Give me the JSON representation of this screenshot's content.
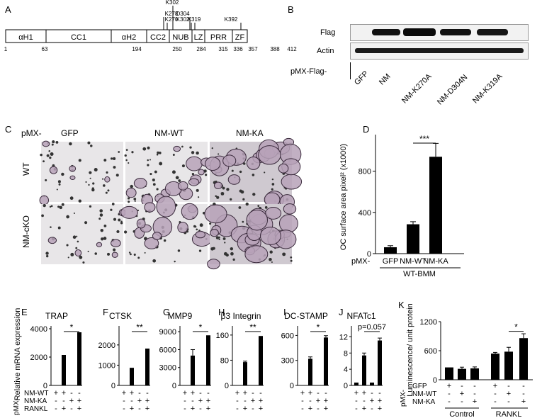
{
  "panels": {
    "A": "A",
    "B": "B",
    "C": "C",
    "D": "D",
    "E": "E",
    "F": "F",
    "G": "G",
    "H": "H",
    "I": "I",
    "J": "J",
    "K": "K"
  },
  "domain_map": {
    "domains": [
      {
        "label": "αH1"
      },
      {
        "label": "CC1"
      },
      {
        "label": "αH2"
      },
      {
        "label": "CC2"
      },
      {
        "label": "NUB"
      },
      {
        "label": "LZ"
      },
      {
        "label": "PRR"
      },
      {
        "label": "ZF"
      }
    ],
    "positions": [
      "1",
      "63",
      "194",
      "250",
      "284",
      "315",
      "336",
      "357",
      "388",
      "412"
    ],
    "sites": [
      "K302",
      "K278",
      "K270",
      "D304",
      "K302",
      "K319",
      "K392"
    ]
  },
  "western": {
    "rows": [
      "Flag",
      "Actin"
    ],
    "prefix": "pMX-Flag-",
    "lanes": [
      "GFP",
      "NM",
      "NM-K270A",
      "NM-D304N",
      "NM-K319A"
    ]
  },
  "micro": {
    "prefix": "pMX-",
    "cols": [
      "GFP",
      "NM-WT",
      "NM-KA"
    ],
    "rows": [
      "WT",
      "NM-cKO"
    ]
  },
  "chart_data": [
    {
      "panel": "D",
      "type": "bar",
      "ylabel": "OC surface area pixel² (x1000)",
      "yticks": [
        "0",
        "400",
        "800"
      ],
      "ylim": [
        0,
        1100
      ],
      "categories": [
        "GFP",
        "NM-WT",
        "NM-KA"
      ],
      "values": [
        62,
        285,
        940
      ],
      "errors": [
        15,
        25,
        130
      ],
      "prefix": "pMX-",
      "group": "WT-BMM",
      "sig": "***"
    },
    {
      "panel": "E",
      "title": "TRAP",
      "ylabel": "Relative mRNA expression",
      "yticks": [
        "0",
        "2000",
        "4000"
      ],
      "ylim": [
        0,
        4000
      ],
      "values": [
        0,
        2150,
        0,
        3750
      ],
      "errors": [
        0,
        0,
        0,
        0
      ],
      "sig": "*",
      "sig_label": ""
    },
    {
      "panel": "F",
      "title": "CTSK",
      "yticks": [
        "0",
        "1000",
        "2000"
      ],
      "ylim": [
        0,
        2800
      ],
      "values": [
        0,
        870,
        0,
        1820
      ],
      "errors": [
        0,
        0,
        0,
        0
      ],
      "sig": "**",
      "sig_label": ""
    },
    {
      "panel": "G",
      "title": "MMP9",
      "yticks": [
        "0",
        "3000",
        "6000",
        "9000"
      ],
      "ylim": [
        0,
        9500
      ],
      "values": [
        0,
        5000,
        0,
        8400
      ],
      "errors": [
        0,
        1000,
        0,
        0
      ],
      "sig": "*",
      "sig_label": ""
    },
    {
      "panel": "H",
      "title": "β3 Integrin",
      "yticks": [
        "0",
        "80",
        "160"
      ],
      "ylim": [
        0,
        180
      ],
      "values": [
        0,
        74,
        1,
        157
      ],
      "errors": [
        0,
        3,
        0,
        0
      ],
      "sig": "**",
      "sig_label": ""
    },
    {
      "panel": "I",
      "title": "DC-STAMP",
      "yticks": [
        "0",
        "300",
        "600"
      ],
      "ylim": [
        0,
        680
      ],
      "values": [
        0,
        320,
        0,
        575
      ],
      "errors": [
        0,
        22,
        0,
        22
      ],
      "sig": "*",
      "sig_label": ""
    },
    {
      "panel": "J",
      "title": "NFATc1",
      "yticks": [
        "0",
        "4",
        "8",
        "12"
      ],
      "ylim": [
        0,
        14
      ],
      "values": [
        0.7,
        7.4,
        0.7,
        11.1
      ],
      "errors": [
        0,
        0.6,
        0,
        0.6
      ],
      "sig": "",
      "sig_label": "p=0.057"
    },
    {
      "panel": "K",
      "ylabel": "Luminescence/ unit protein",
      "yticks": [
        "0",
        "600",
        "1200"
      ],
      "ylim": [
        0,
        1200
      ],
      "values": [
        255,
        225,
        235,
        540,
        580,
        860
      ],
      "errors": [
        0,
        35,
        30,
        25,
        90,
        90
      ],
      "sig": "*",
      "groups": [
        "Control",
        "RANKL"
      ]
    }
  ],
  "small_table": {
    "prefix": "pMX-",
    "rows": [
      "NM-WT",
      "NM-KA",
      "RANKL"
    ],
    "signs": [
      [
        "+",
        "+",
        "-",
        "-"
      ],
      [
        "-",
        "-",
        "+",
        "+"
      ],
      [
        "-",
        "+",
        "-",
        "+"
      ]
    ]
  },
  "k_table": {
    "prefix": "pMX-",
    "rows": [
      "GFP",
      "NM-WT",
      "NM-KA"
    ],
    "signs": [
      [
        "+",
        "-",
        "-",
        "+",
        "-",
        "-"
      ],
      [
        "-",
        "+",
        "-",
        "-",
        "+",
        "-"
      ],
      [
        "-",
        "-",
        "+",
        "-",
        "-",
        "+"
      ]
    ]
  }
}
